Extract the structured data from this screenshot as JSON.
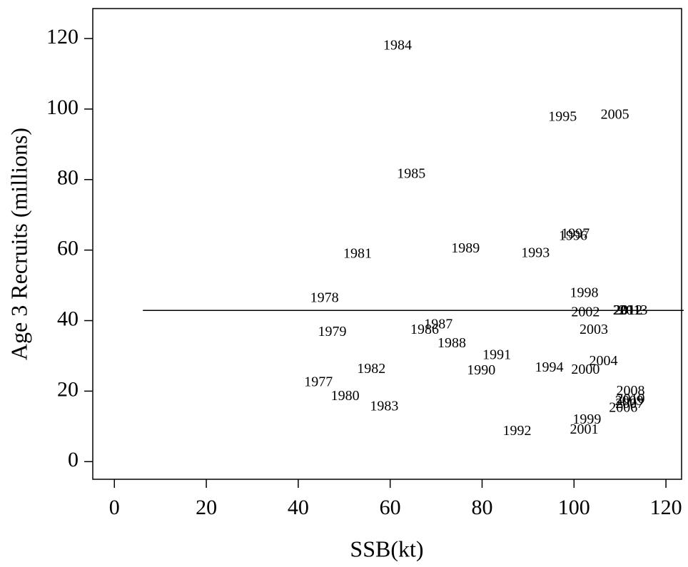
{
  "chart_data": {
    "type": "scatter",
    "x_label": "SSB(kt)",
    "y_label": "Age 3 Recruits (millions)",
    "labels": [
      "1977",
      "1978",
      "1979",
      "1980",
      "1981",
      "1982",
      "1983",
      "1984",
      "1985",
      "1986",
      "1987",
      "1988",
      "1989",
      "1990",
      "1991",
      "1992",
      "1993",
      "1994",
      "1995",
      "1996",
      "1997",
      "1998",
      "1999",
      "2000",
      "2001",
      "2002",
      "2003",
      "2004",
      "2005",
      "2006",
      "2007",
      "2008",
      "2009",
      "2010",
      "2011",
      "2012",
      "2013"
    ],
    "x": [
      44.4,
      45.7,
      47.4,
      50.2,
      52.9,
      55.9,
      58.7,
      61.6,
      64.6,
      67.5,
      70.5,
      73.4,
      76.4,
      79.8,
      83.2,
      87.6,
      91.6,
      94.6,
      97.5,
      99.8,
      100.3,
      102.2,
      102.8,
      102.5,
      102.2,
      102.5,
      104.3,
      106.4,
      108.9,
      110.7,
      112.1,
      112.3,
      112.0,
      112.3,
      111.5,
      111.8,
      112.9
    ],
    "y": [
      22.3,
      46.2,
      36.6,
      18.4,
      58.7,
      26.1,
      15.4,
      117.8,
      81.4,
      37.2,
      38.7,
      33.4,
      60.3,
      25.7,
      30.0,
      8.5,
      58.9,
      26.5,
      97.6,
      63.8,
      64.4,
      47.6,
      11.7,
      25.9,
      8.9,
      42.1,
      37.2,
      28.3,
      98.2,
      15.0,
      16.2,
      19.8,
      17.0,
      17.6,
      42.7,
      42.7,
      42.7
    ],
    "reference_line": {
      "y": 42.9,
      "x_start": 6.2
    },
    "xlim": [
      -4.7,
      123.4
    ],
    "ylim": [
      -5,
      128.5
    ],
    "xticks": [
      0,
      20,
      40,
      60,
      80,
      100,
      120
    ],
    "yticks": [
      0,
      20,
      40,
      60,
      80,
      100,
      120
    ]
  }
}
